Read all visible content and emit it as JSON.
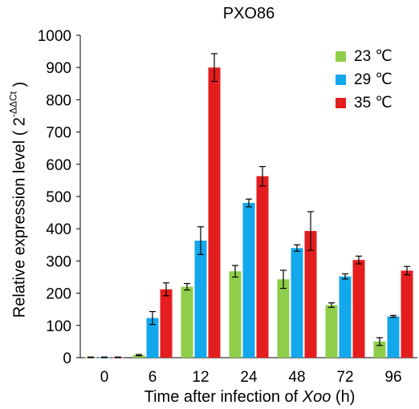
{
  "colors": {
    "23": "#8fce4a",
    "29": "#13a8ec",
    "35": "#e41e1e"
  },
  "chart_data": {
    "type": "bar",
    "title": "PXO86",
    "ylabel_main": "Relative expression level ( 2",
    "ylabel_sup": "-ΔΔCt",
    "ylabel_close": " )",
    "xlabel_main": "Time after infection of ",
    "xlabel_italic": "Xoo",
    "xlabel_end": " (h)",
    "categories": [
      "0",
      "6",
      "12",
      "24",
      "48",
      "72",
      "96"
    ],
    "ylim": [
      0,
      1000
    ],
    "yticks": [
      "0",
      "100",
      "200",
      "300",
      "400",
      "500",
      "600",
      "700",
      "800",
      "900",
      "1000"
    ],
    "legend_position": "top-right",
    "grid": false,
    "series": [
      {
        "name": "23 ℃",
        "color_key": "23",
        "values": [
          1,
          8,
          220,
          268,
          243,
          163,
          50
        ],
        "errors": [
          1,
          2,
          10,
          18,
          28,
          7,
          12
        ]
      },
      {
        "name": "29 ℃",
        "color_key": "29",
        "values": [
          1,
          123,
          363,
          480,
          340,
          252,
          128
        ],
        "errors": [
          1,
          20,
          43,
          12,
          10,
          8,
          3
        ]
      },
      {
        "name": "35 ℃",
        "color_key": "35",
        "values": [
          1,
          212,
          900,
          563,
          393,
          303,
          270
        ],
        "errors": [
          1,
          20,
          43,
          30,
          60,
          12,
          13
        ]
      }
    ]
  }
}
